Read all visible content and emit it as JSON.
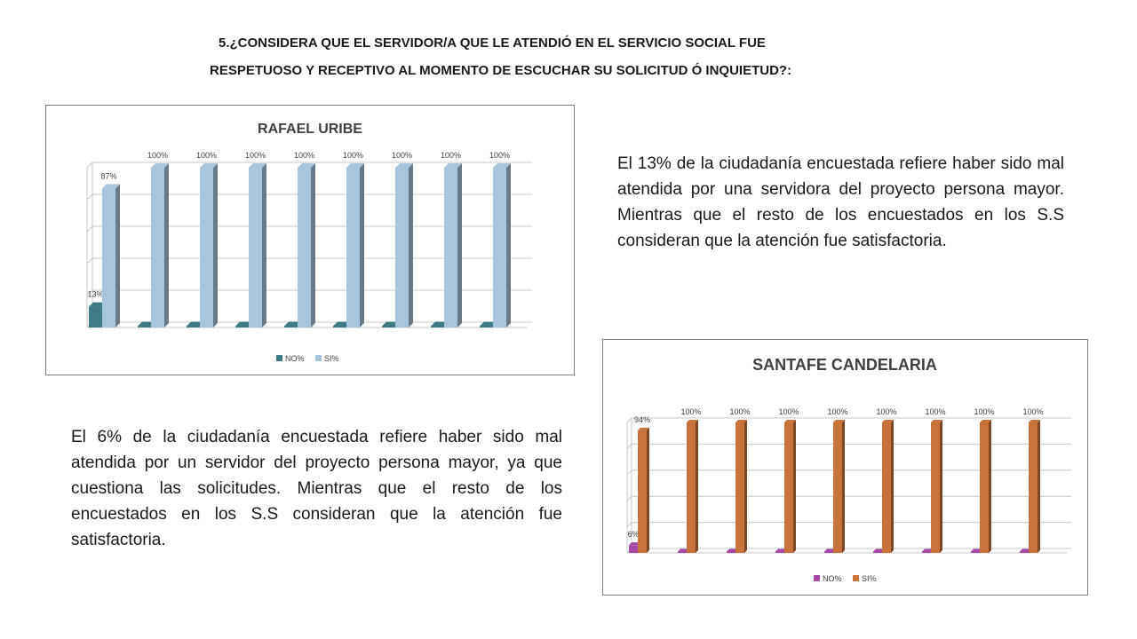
{
  "heading": {
    "line1": "5.¿CONSIDERA QUE EL SERVIDOR/A QUE LE ATENDIÓ EN EL SERVICIO SOCIAL FUE",
    "line2": "RESPETUOSO Y RECEPTIVO AL MOMENTO DE ESCUCHAR SU SOLICITUD Ó INQUIETUD?:"
  },
  "text_rafael": "El 13%  de la ciudadanía encuestada refiere haber sido mal atendida  por una servidora del proyecto persona mayor. Mientras que el resto de los encuestados en los S.S  consideran que la atención fue satisfactoria.",
  "text_santafe": "El 6%  de la ciudadanía encuestada refiere haber  sido mal atendida   por un servidor del proyecto persona mayor, ya que cuestiona las solicitudes.   Mientras que el resto de los encuestados en los S.S  consideran que la atención fue satisfactoria.",
  "chart_data": [
    {
      "type": "bar",
      "title": "RAFAEL URIBE",
      "categories": [
        "",
        "",
        "",
        "",
        "",
        "",
        "",
        "",
        ""
      ],
      "series": [
        {
          "name": "NO%",
          "values": [
            13,
            0,
            0,
            0,
            0,
            0,
            0,
            0,
            0
          ],
          "labels": [
            "13%",
            "",
            "",
            "",
            "",
            "",
            "",
            "",
            ""
          ],
          "color": "#3e7b84"
        },
        {
          "name": "SI%",
          "values": [
            87,
            100,
            100,
            100,
            100,
            100,
            100,
            100,
            100
          ],
          "labels": [
            "87%",
            "100%",
            "100%",
            "100%",
            "100%",
            "100%",
            "100%",
            "100%",
            "100%"
          ],
          "color": "#a7c5dc"
        }
      ],
      "ylim": [
        0,
        100
      ],
      "grid": true,
      "legend": "bottom",
      "style": "3d-column"
    },
    {
      "type": "bar",
      "title": "SANTAFE CANDELARIA",
      "categories": [
        "",
        "",
        "",
        "",
        "",
        "",
        "",
        "",
        ""
      ],
      "series": [
        {
          "name": "NO%",
          "values": [
            6,
            0,
            0,
            0,
            0,
            0,
            0,
            0,
            0
          ],
          "labels": [
            "6%",
            "",
            "",
            "",
            "",
            "",
            "",
            "",
            ""
          ],
          "color": "#a74aa7"
        },
        {
          "name": "SI%",
          "values": [
            94,
            100,
            100,
            100,
            100,
            100,
            100,
            100,
            100
          ],
          "labels": [
            "94%",
            "100%",
            "100%",
            "100%",
            "100%",
            "100%",
            "100%",
            "100%",
            "100%"
          ],
          "color": "#c8733c"
        }
      ],
      "ylim": [
        0,
        100
      ],
      "grid": true,
      "legend": "bottom",
      "style": "3d-column"
    }
  ]
}
